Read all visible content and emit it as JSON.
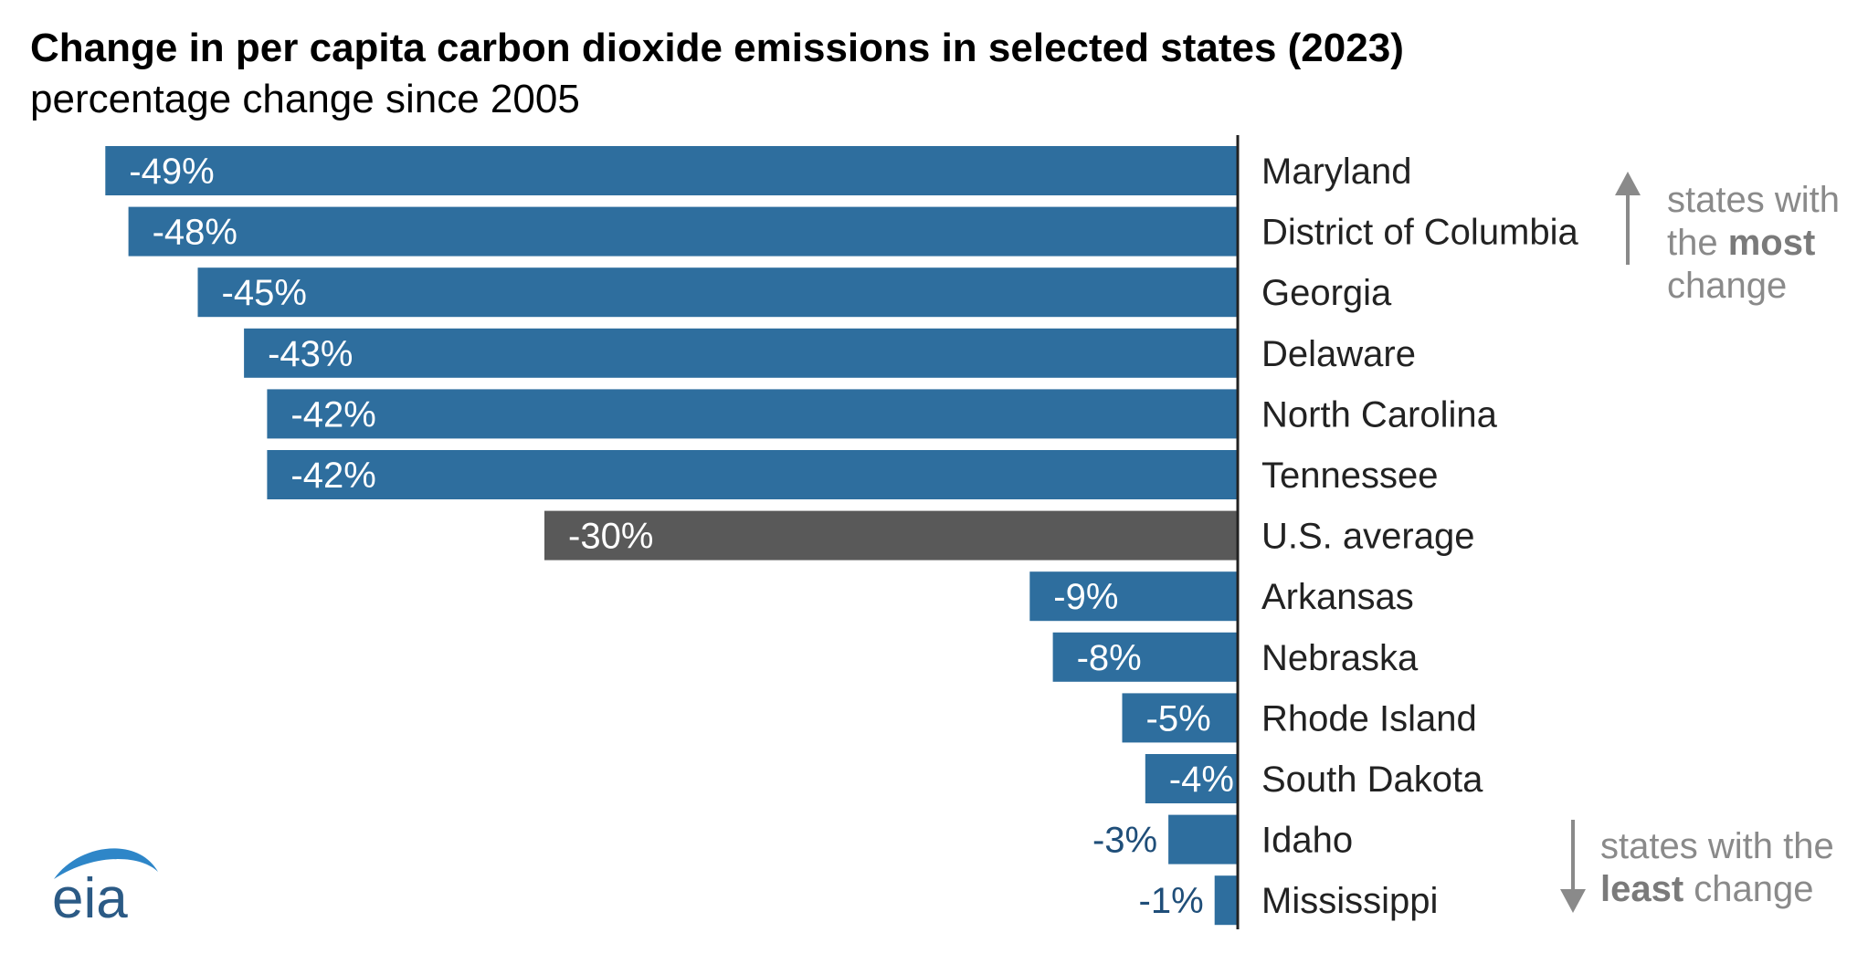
{
  "header": {
    "title": "Change in per capita carbon dioxide emissions in selected states (2023)",
    "subtitle": "percentage change since 2005"
  },
  "annotations": {
    "most": {
      "prefix": "states with the",
      "bold": "most",
      "suffix": "change"
    },
    "least": {
      "prefix": "states with the",
      "bold": "least",
      "suffix": "change"
    }
  },
  "logo": {
    "text": "eia"
  },
  "colors": {
    "state_bar": "#2e6e9e",
    "average_bar": "#595959",
    "label_inside": "#ffffff",
    "label_outside": "#1f4e79",
    "arrow": "#8a8a8a",
    "logo_arc": "#2e86c8",
    "logo_text": "#2b5a85"
  },
  "chart_data": {
    "type": "bar",
    "orientation": "horizontal",
    "categories": [
      "Maryland",
      "District of Columbia",
      "Georgia",
      "Delaware",
      "North Carolina",
      "Tennessee",
      "U.S. average",
      "Arkansas",
      "Nebraska",
      "Rhode Island",
      "South Dakota",
      "Idaho",
      "Mississippi"
    ],
    "values": [
      -49,
      -48,
      -45,
      -43,
      -42,
      -42,
      -30,
      -9,
      -8,
      -5,
      -4,
      -3,
      -1
    ],
    "value_labels": [
      "-49%",
      "-48%",
      "-45%",
      "-43%",
      "-42%",
      "-42%",
      "-30%",
      "-9%",
      "-8%",
      "-5%",
      "-4%",
      "-3%",
      "-1%"
    ],
    "highlight_index": 6,
    "xlim": [
      -50,
      0
    ],
    "grid": false,
    "legend": "none"
  }
}
